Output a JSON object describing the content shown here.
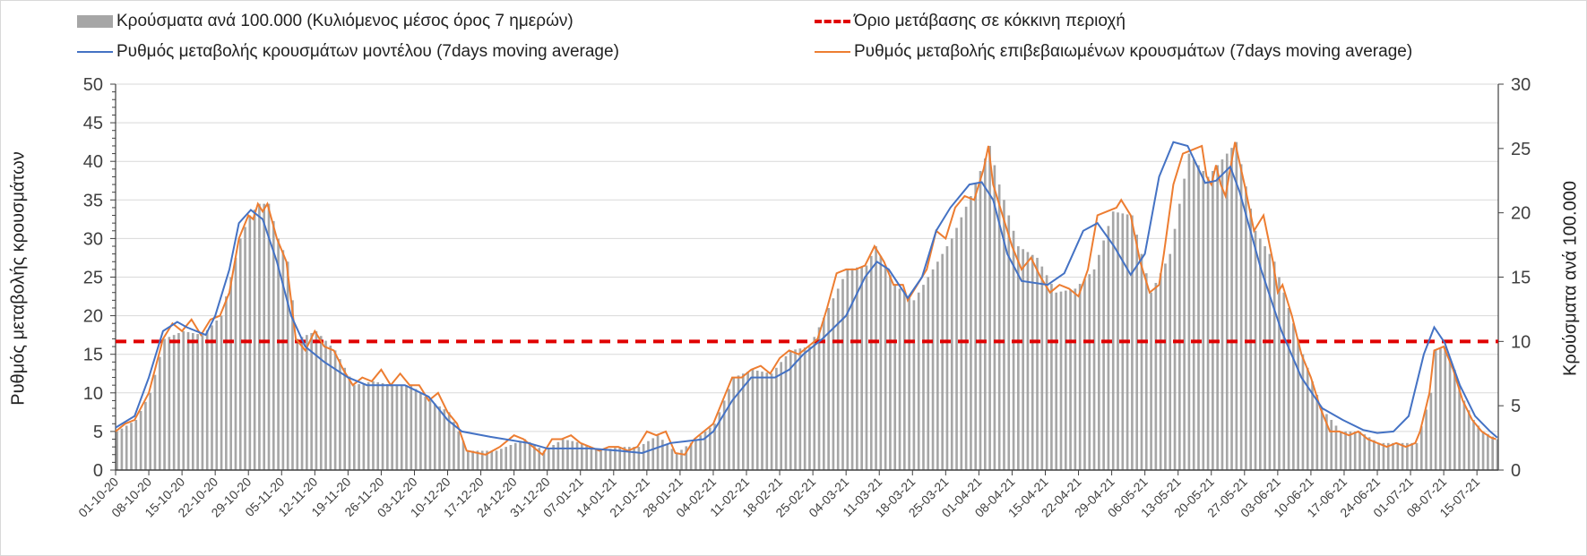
{
  "chart_data": {
    "type": "bar+line",
    "legend": {
      "bars": "Κρούσματα ανά 100.000 (Κυλιόμενος μέσος όρος 7 ημερών)",
      "threshold": "Όριο μετάβασης σε κόκκινη περιοχή",
      "model": "Ρυθμός μεταβολής κρουσμάτων μοντέλου (7days moving average)",
      "confirmed": "Ρυθμός μεταβολής επιβεβαιωμένων κρουσμάτων (7days moving average)"
    },
    "legend_placement": "top",
    "ylabel_left": "Ρυθμός μεταβολής κρουσμάτων",
    "ylabel_right": "Κρούσματα ανά 100.000",
    "ylim_left": [
      0,
      50
    ],
    "ylim_right": [
      0,
      30
    ],
    "yticks_left": [
      "0",
      "5",
      "10",
      "15",
      "20",
      "25",
      "30",
      "35",
      "40",
      "45",
      "50"
    ],
    "yticks_right": [
      "0",
      "5",
      "10",
      "15",
      "20",
      "25",
      "30"
    ],
    "x_unit": "days since 01-10-20",
    "x_range": [
      0,
      291
    ],
    "xtick_labels": [
      "01-10-20",
      "08-10-20",
      "15-10-20",
      "22-10-20",
      "29-10-20",
      "05-11-20",
      "12-11-20",
      "19-11-20",
      "26-11-20",
      "03-12-20",
      "10-12-20",
      "17-12-20",
      "24-12-20",
      "31-12-20",
      "07-01-21",
      "14-01-21",
      "21-01-21",
      "28-01-21",
      "04-02-21",
      "11-02-21",
      "18-02-21",
      "25-02-21",
      "04-03-21",
      "11-03-21",
      "18-03-21",
      "25-03-21",
      "01-04-21",
      "08-04-21",
      "15-04-21",
      "22-04-21",
      "29-04-21",
      "06-05-21",
      "13-05-21",
      "20-05-21",
      "27-05-21",
      "03-06-21",
      "10-06-21",
      "17-06-21",
      "24-06-21",
      "01-07-21",
      "08-07-21",
      "15-07-21"
    ],
    "threshold_right_axis": 10,
    "colors": {
      "bars": "#a6a6a6",
      "model": "#4472c4",
      "confirmed": "#ed7d31",
      "threshold": "#e00000"
    },
    "bars_right_axis": [
      [
        0,
        3
      ],
      [
        4,
        3.9
      ],
      [
        7,
        6
      ],
      [
        10,
        10.2
      ],
      [
        14,
        10.8
      ],
      [
        18,
        10.5
      ],
      [
        22,
        12
      ],
      [
        26,
        18
      ],
      [
        28,
        19.8
      ],
      [
        30,
        20.7
      ],
      [
        32,
        20.7
      ],
      [
        34,
        18
      ],
      [
        36,
        16.2
      ],
      [
        38,
        10.2
      ],
      [
        42,
        10.8
      ],
      [
        46,
        9.3
      ],
      [
        50,
        6.6
      ],
      [
        54,
        6.9
      ],
      [
        58,
        6.6
      ],
      [
        62,
        6.6
      ],
      [
        66,
        5.4
      ],
      [
        70,
        4.5
      ],
      [
        74,
        1.5
      ],
      [
        80,
        1.5
      ],
      [
        86,
        2.4
      ],
      [
        90,
        1.5
      ],
      [
        94,
        2.4
      ],
      [
        98,
        2.1
      ],
      [
        102,
        1.5
      ],
      [
        106,
        1.8
      ],
      [
        110,
        1.8
      ],
      [
        114,
        2.7
      ],
      [
        118,
        1.3
      ],
      [
        122,
        2.4
      ],
      [
        126,
        3.6
      ],
      [
        130,
        7.2
      ],
      [
        134,
        7.8
      ],
      [
        138,
        7.5
      ],
      [
        142,
        9.3
      ],
      [
        146,
        9.6
      ],
      [
        150,
        12.6
      ],
      [
        154,
        15.6
      ],
      [
        158,
        15.9
      ],
      [
        160,
        17.4
      ],
      [
        164,
        14.4
      ],
      [
        168,
        13.2
      ],
      [
        172,
        15.6
      ],
      [
        176,
        18
      ],
      [
        180,
        21.3
      ],
      [
        184,
        25.2
      ],
      [
        186,
        22.2
      ],
      [
        190,
        17.4
      ],
      [
        194,
        16.5
      ],
      [
        198,
        13.8
      ],
      [
        202,
        14.1
      ],
      [
        206,
        15.6
      ],
      [
        210,
        20.1
      ],
      [
        214,
        19.8
      ],
      [
        218,
        13.8
      ],
      [
        222,
        16.8
      ],
      [
        226,
        24.6
      ],
      [
        230,
        22.8
      ],
      [
        232,
        23.7
      ],
      [
        236,
        25.5
      ],
      [
        240,
        18.6
      ],
      [
        244,
        16.2
      ],
      [
        246,
        13.8
      ],
      [
        250,
        9
      ],
      [
        254,
        4.8
      ],
      [
        258,
        3
      ],
      [
        262,
        3
      ],
      [
        266,
        2.1
      ],
      [
        270,
        2.1
      ],
      [
        274,
        2.1
      ],
      [
        277,
        6
      ],
      [
        278,
        9.3
      ],
      [
        280,
        9.6
      ],
      [
        282,
        7.8
      ],
      [
        284,
        5.4
      ],
      [
        286,
        3.9
      ],
      [
        288,
        3
      ],
      [
        291,
        2.4
      ]
    ],
    "model_left_axis": [
      [
        0,
        5.5
      ],
      [
        4,
        7
      ],
      [
        7,
        12
      ],
      [
        10,
        18
      ],
      [
        13,
        19.2
      ],
      [
        15,
        18.5
      ],
      [
        19,
        17.5
      ],
      [
        21,
        20
      ],
      [
        24,
        26
      ],
      [
        26,
        32
      ],
      [
        28.5,
        33.7
      ],
      [
        31,
        32.5
      ],
      [
        34,
        27
      ],
      [
        37,
        20
      ],
      [
        40,
        16
      ],
      [
        44,
        14
      ],
      [
        49,
        12
      ],
      [
        53,
        11
      ],
      [
        61,
        11
      ],
      [
        66,
        9.5
      ],
      [
        70,
        6.5
      ],
      [
        73,
        5
      ],
      [
        79,
        4.3
      ],
      [
        87,
        3.5
      ],
      [
        91,
        2.8
      ],
      [
        100,
        2.8
      ],
      [
        106,
        2.5
      ],
      [
        111,
        2.2
      ],
      [
        117,
        3.5
      ],
      [
        124,
        4
      ],
      [
        126,
        5
      ],
      [
        130,
        9
      ],
      [
        134,
        12
      ],
      [
        139,
        12
      ],
      [
        142,
        13
      ],
      [
        145,
        15
      ],
      [
        149,
        17
      ],
      [
        154,
        20
      ],
      [
        158,
        25
      ],
      [
        160.5,
        27
      ],
      [
        163,
        26
      ],
      [
        167,
        22.3
      ],
      [
        170,
        25
      ],
      [
        173,
        31
      ],
      [
        176,
        34
      ],
      [
        180,
        37
      ],
      [
        182.6,
        37.3
      ],
      [
        185,
        35
      ],
      [
        188,
        28
      ],
      [
        191,
        24.5
      ],
      [
        196.5,
        24
      ],
      [
        200,
        25.5
      ],
      [
        204,
        31
      ],
      [
        207,
        32
      ],
      [
        210.5,
        29
      ],
      [
        214,
        25.3
      ],
      [
        217,
        28
      ],
      [
        220,
        38
      ],
      [
        223,
        42.5
      ],
      [
        226,
        42
      ],
      [
        229.7,
        37.2
      ],
      [
        232,
        37.5
      ],
      [
        235,
        39.3
      ],
      [
        237,
        36
      ],
      [
        241.5,
        26
      ],
      [
        245.8,
        18
      ],
      [
        250,
        12
      ],
      [
        254.4,
        8
      ],
      [
        258.7,
        6.5
      ],
      [
        263,
        5.2
      ],
      [
        266,
        4.8
      ],
      [
        269.4,
        5
      ],
      [
        272.6,
        7
      ],
      [
        275.8,
        15
      ],
      [
        278,
        18.5
      ],
      [
        280.2,
        16.5
      ],
      [
        283.4,
        11
      ],
      [
        286.6,
        7
      ],
      [
        289.8,
        5
      ],
      [
        291.3,
        4.2
      ]
    ],
    "confirmed_left_axis": [
      [
        0,
        5
      ],
      [
        2,
        6
      ],
      [
        4,
        6.5
      ],
      [
        7,
        10
      ],
      [
        10,
        17
      ],
      [
        12,
        19
      ],
      [
        14,
        18
      ],
      [
        16,
        19.5
      ],
      [
        18,
        17.5
      ],
      [
        20,
        19.5
      ],
      [
        22,
        20
      ],
      [
        24,
        23
      ],
      [
        26,
        30
      ],
      [
        28,
        33
      ],
      [
        29,
        32.5
      ],
      [
        30,
        34.5
      ],
      [
        31,
        33.5
      ],
      [
        32,
        34.5
      ],
      [
        34,
        30
      ],
      [
        36,
        27
      ],
      [
        38,
        17
      ],
      [
        40,
        15.5
      ],
      [
        42,
        18
      ],
      [
        44,
        16
      ],
      [
        46,
        15.5
      ],
      [
        48,
        13
      ],
      [
        50,
        11
      ],
      [
        52,
        12
      ],
      [
        54,
        11.5
      ],
      [
        56,
        13
      ],
      [
        58,
        11
      ],
      [
        60,
        12.5
      ],
      [
        62,
        11
      ],
      [
        64,
        11
      ],
      [
        66,
        9
      ],
      [
        68,
        10
      ],
      [
        70,
        7.5
      ],
      [
        72,
        6
      ],
      [
        74,
        2.5
      ],
      [
        78,
        2
      ],
      [
        81,
        3
      ],
      [
        84,
        4.5
      ],
      [
        86,
        4
      ],
      [
        88,
        3
      ],
      [
        90,
        2
      ],
      [
        92,
        4
      ],
      [
        94,
        4
      ],
      [
        96,
        4.5
      ],
      [
        98,
        3.5
      ],
      [
        100,
        3
      ],
      [
        102,
        2.5
      ],
      [
        104,
        3
      ],
      [
        106,
        3
      ],
      [
        108,
        2.5
      ],
      [
        110,
        3
      ],
      [
        112,
        5
      ],
      [
        114,
        4.5
      ],
      [
        116,
        5
      ],
      [
        118,
        2.2
      ],
      [
        120,
        2
      ],
      [
        122,
        4
      ],
      [
        124,
        5
      ],
      [
        126,
        6
      ],
      [
        128,
        9
      ],
      [
        130,
        12
      ],
      [
        132,
        12
      ],
      [
        134,
        13
      ],
      [
        136,
        13.5
      ],
      [
        138,
        12.5
      ],
      [
        140,
        14.5
      ],
      [
        142,
        15.5
      ],
      [
        144,
        15
      ],
      [
        146,
        16
      ],
      [
        148,
        17
      ],
      [
        150,
        21
      ],
      [
        152,
        25.5
      ],
      [
        154,
        26
      ],
      [
        156,
        26
      ],
      [
        158,
        26.5
      ],
      [
        160,
        29
      ],
      [
        162,
        27
      ],
      [
        164,
        24
      ],
      [
        166,
        24
      ],
      [
        167,
        22
      ],
      [
        169,
        24
      ],
      [
        171,
        26
      ],
      [
        173,
        31
      ],
      [
        175,
        30
      ],
      [
        177,
        34
      ],
      [
        179,
        35.5
      ],
      [
        181,
        35
      ],
      [
        183,
        39
      ],
      [
        184,
        42
      ],
      [
        185,
        37
      ],
      [
        187,
        33
      ],
      [
        189,
        29
      ],
      [
        191,
        26
      ],
      [
        193,
        27.5
      ],
      [
        195,
        25
      ],
      [
        197,
        23
      ],
      [
        199,
        24
      ],
      [
        201,
        23.5
      ],
      [
        203,
        22.5
      ],
      [
        205,
        26
      ],
      [
        207,
        33
      ],
      [
        209,
        33.5
      ],
      [
        211,
        34
      ],
      [
        212,
        35
      ],
      [
        214,
        33
      ],
      [
        216,
        27
      ],
      [
        218,
        23
      ],
      [
        220,
        24
      ],
      [
        221,
        28
      ],
      [
        223,
        37
      ],
      [
        225,
        41
      ],
      [
        227,
        41.5
      ],
      [
        229,
        42
      ],
      [
        230,
        38
      ],
      [
        231,
        37
      ],
      [
        232,
        39.5
      ],
      [
        233,
        37
      ],
      [
        234,
        35.5
      ],
      [
        236,
        42.5
      ],
      [
        238,
        37
      ],
      [
        240,
        31
      ],
      [
        242,
        33
      ],
      [
        244,
        27
      ],
      [
        245,
        23
      ],
      [
        246,
        24
      ],
      [
        248,
        20
      ],
      [
        250,
        15
      ],
      [
        252,
        12
      ],
      [
        254,
        8
      ],
      [
        256,
        5
      ],
      [
        258,
        5
      ],
      [
        260,
        4.5
      ],
      [
        262,
        5
      ],
      [
        264,
        4
      ],
      [
        266,
        3.5
      ],
      [
        268,
        3
      ],
      [
        270,
        3.5
      ],
      [
        272,
        3
      ],
      [
        274,
        3.5
      ],
      [
        275,
        5
      ],
      [
        277,
        10
      ],
      [
        278,
        15.5
      ],
      [
        280,
        16
      ],
      [
        282,
        13
      ],
      [
        284,
        9
      ],
      [
        286,
        6.5
      ],
      [
        288,
        5
      ],
      [
        290,
        4.2
      ],
      [
        291,
        4
      ]
    ]
  }
}
